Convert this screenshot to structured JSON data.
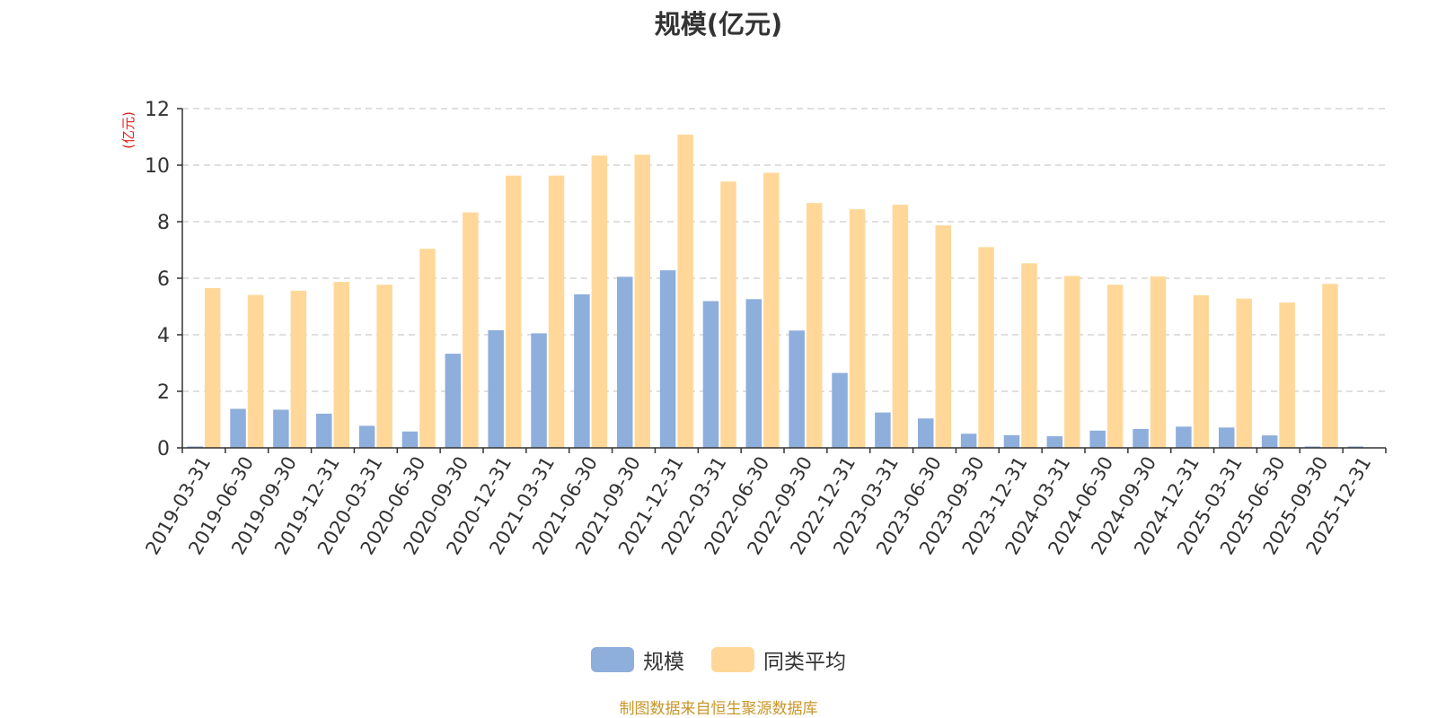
{
  "chart_data": {
    "type": "bar",
    "title": "规模(亿元)",
    "ylabel": "(亿元)",
    "xlabel": "",
    "ylim": [
      0,
      12
    ],
    "yticks": [
      0,
      2,
      4,
      6,
      8,
      10,
      12
    ],
    "grid": true,
    "legend_position": "bottom",
    "categories": [
      "2019-03-31",
      "2019-06-30",
      "2019-09-30",
      "2019-12-31",
      "2020-03-31",
      "2020-06-30",
      "2020-09-30",
      "2020-12-31",
      "2021-03-31",
      "2021-06-30",
      "2021-09-30",
      "2021-12-31",
      "2022-03-31",
      "2022-06-30",
      "2022-09-30",
      "2022-12-31",
      "2023-03-31",
      "2023-06-30",
      "2023-09-30",
      "2023-12-31",
      "2024-03-31",
      "2024-06-30",
      "2024-09-30",
      "2024-12-31",
      "2025-03-31",
      "2025-06-30",
      "2025-09-30",
      "2025-12-31"
    ],
    "series": [
      {
        "name": "规模",
        "color": "#8eaedc",
        "values": [
          0.05,
          1.38,
          1.35,
          1.21,
          0.78,
          0.58,
          3.33,
          4.16,
          4.05,
          5.43,
          6.05,
          6.28,
          5.19,
          5.26,
          4.15,
          2.65,
          1.25,
          1.04,
          0.5,
          0.45,
          0.41,
          0.61,
          0.67,
          0.75,
          0.72,
          0.44,
          0.05,
          0.05
        ]
      },
      {
        "name": "同类平均",
        "color": "#ffd899",
        "values": [
          5.65,
          5.41,
          5.56,
          5.87,
          5.77,
          7.04,
          8.33,
          9.63,
          9.63,
          10.34,
          10.37,
          11.08,
          9.42,
          9.73,
          8.66,
          8.44,
          8.6,
          7.87,
          7.1,
          6.53,
          6.08,
          5.77,
          6.06,
          5.4,
          5.28,
          5.14,
          5.8,
          null
        ]
      }
    ]
  },
  "source_text": "制图数据来自恒生聚源数据库",
  "colors": {
    "title": "#333333",
    "axis": "#333333",
    "grid": "#cccccc",
    "ylabel": "#e02020",
    "source": "#c8962a"
  }
}
